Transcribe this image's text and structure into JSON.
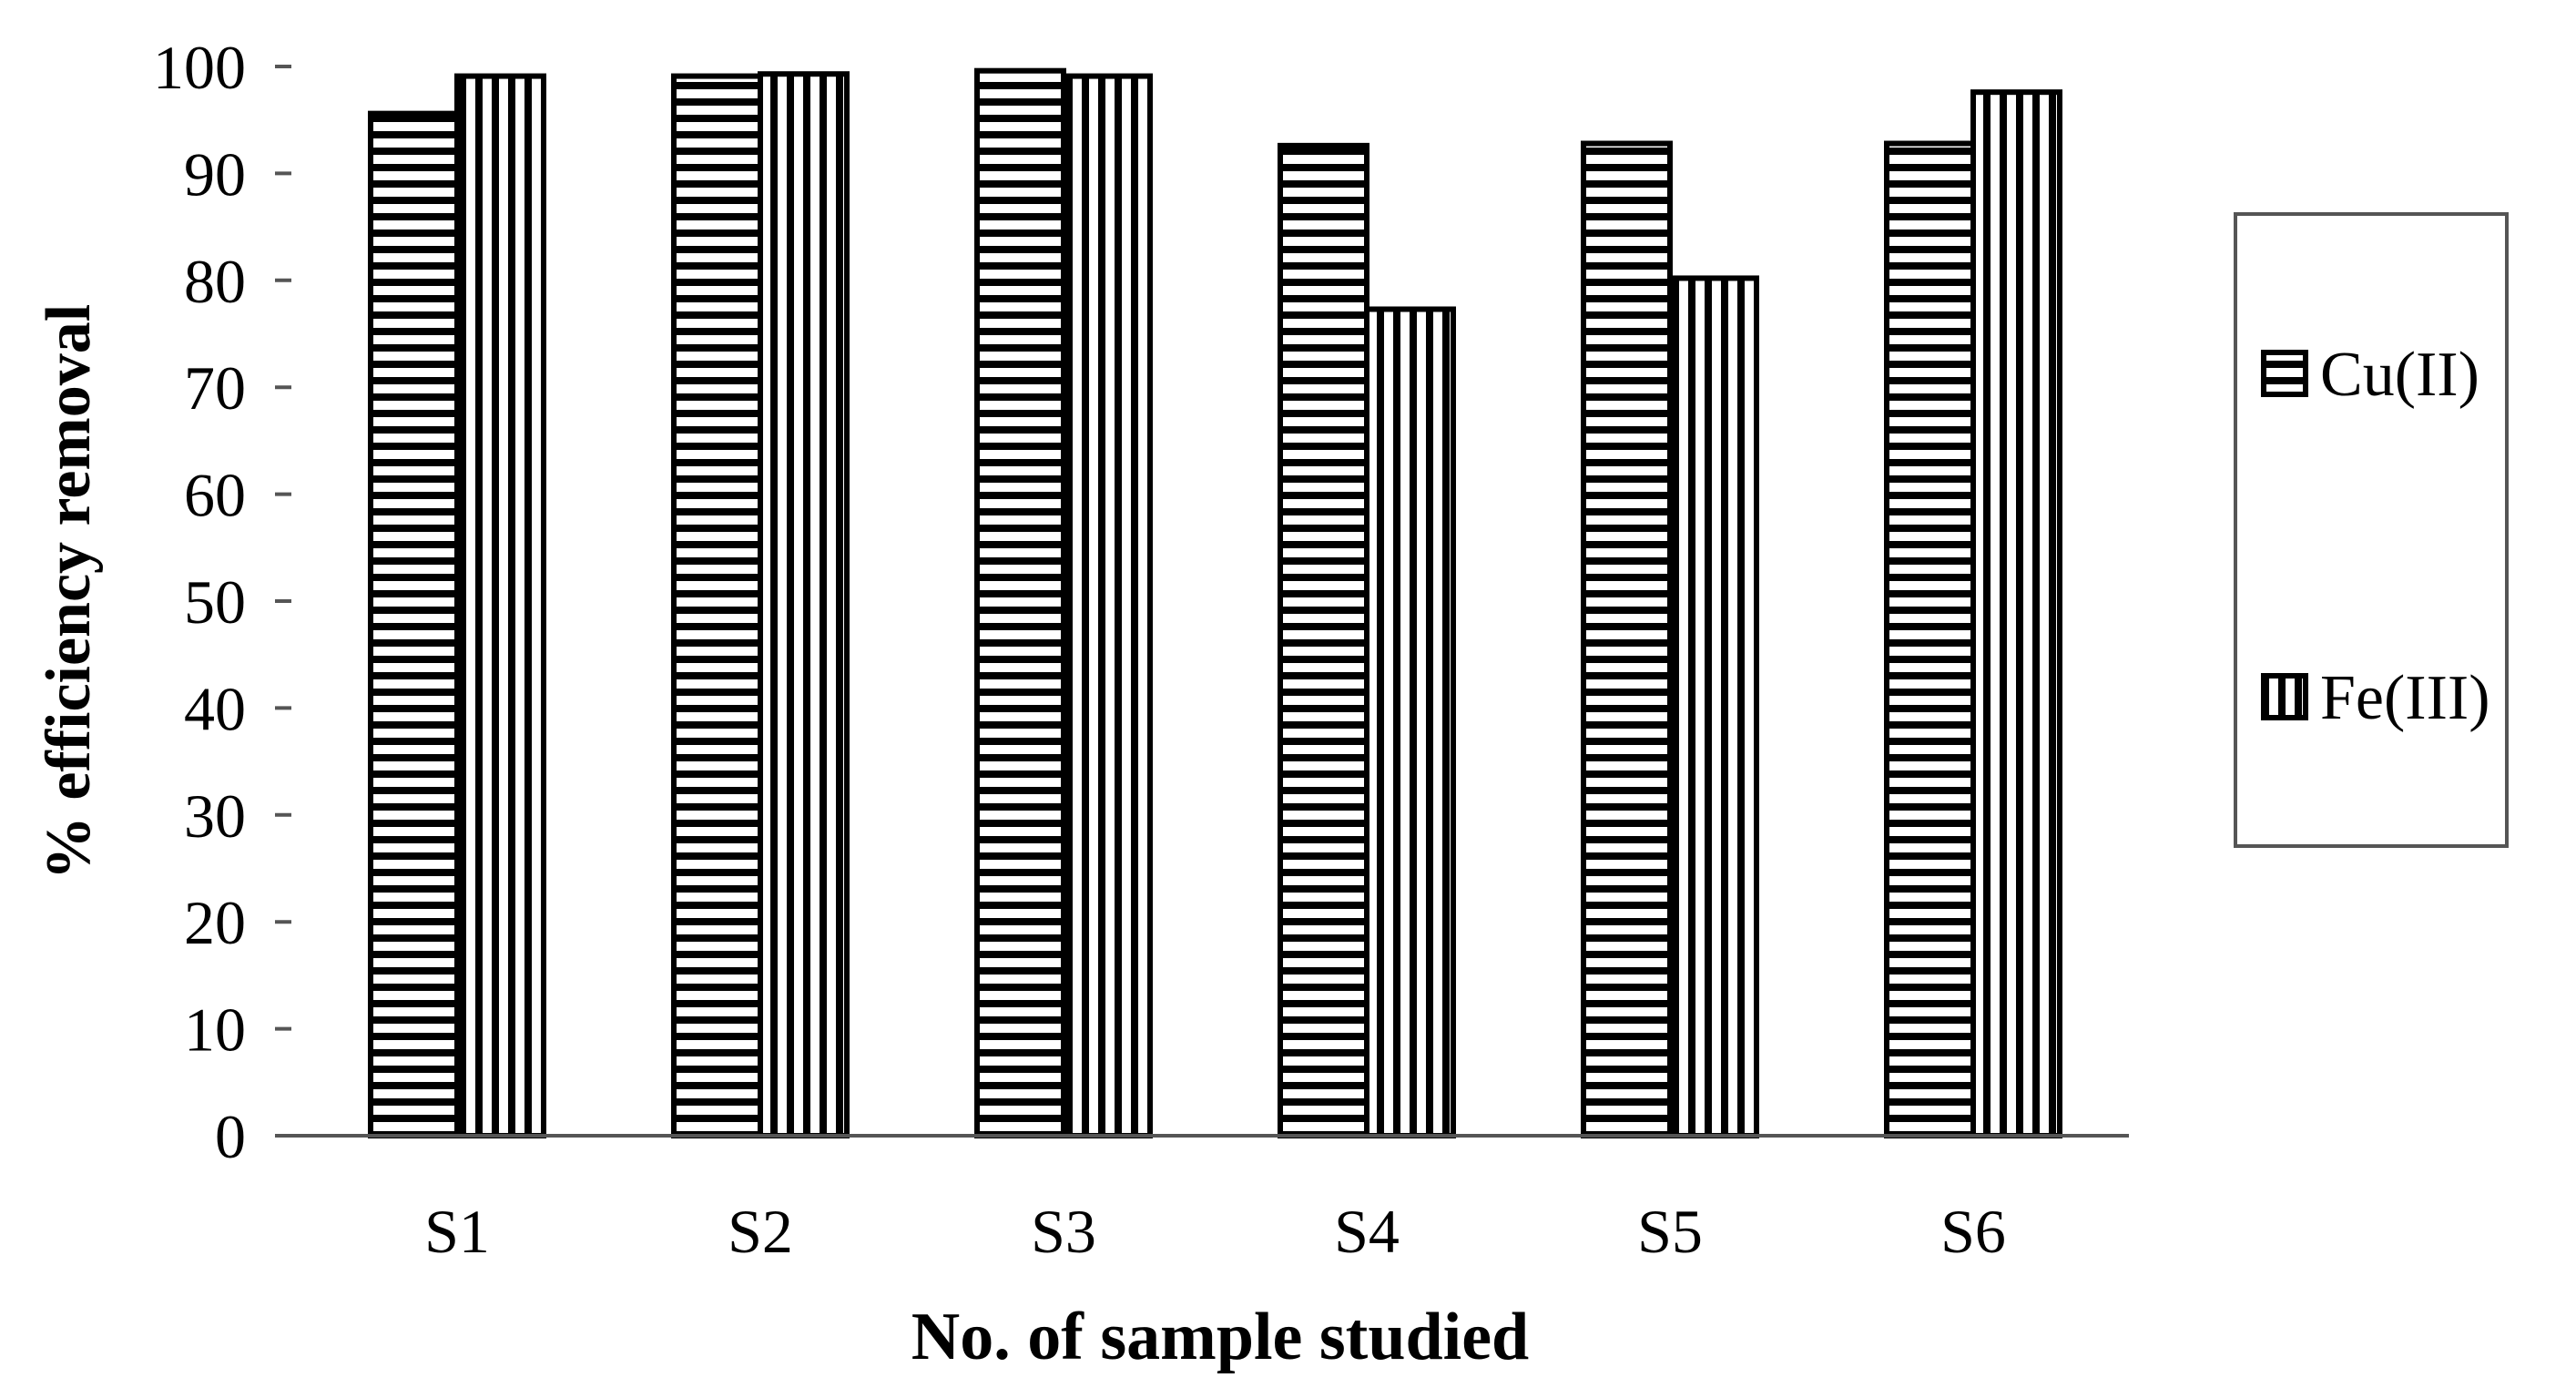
{
  "chart_data": {
    "type": "bar",
    "title": "",
    "xlabel": "No. of sample studied",
    "ylabel": "% efficiency removal",
    "categories": [
      "S1",
      "S2",
      "S3",
      "S4",
      "S5",
      "S6"
    ],
    "series": [
      {
        "name": "Cu(II)",
        "pattern": "horizontal-stripes",
        "values": [
          95.6,
          99.1,
          99.6,
          92.6,
          92.8,
          92.8
        ]
      },
      {
        "name": "Fe(III)",
        "pattern": "vertical-stripes",
        "values": [
          99.1,
          99.3,
          99.1,
          77.3,
          80.2,
          97.6
        ]
      }
    ],
    "ylim": [
      0,
      100
    ],
    "yticks": [
      "0",
      "10",
      "20",
      "30",
      "40",
      "50",
      "60",
      "70",
      "80",
      "90",
      "100"
    ],
    "grid": false,
    "legend_position": "right",
    "colors": {
      "bar_stroke": "#000000",
      "stripe": "#000000",
      "background": "#ffffff"
    }
  }
}
